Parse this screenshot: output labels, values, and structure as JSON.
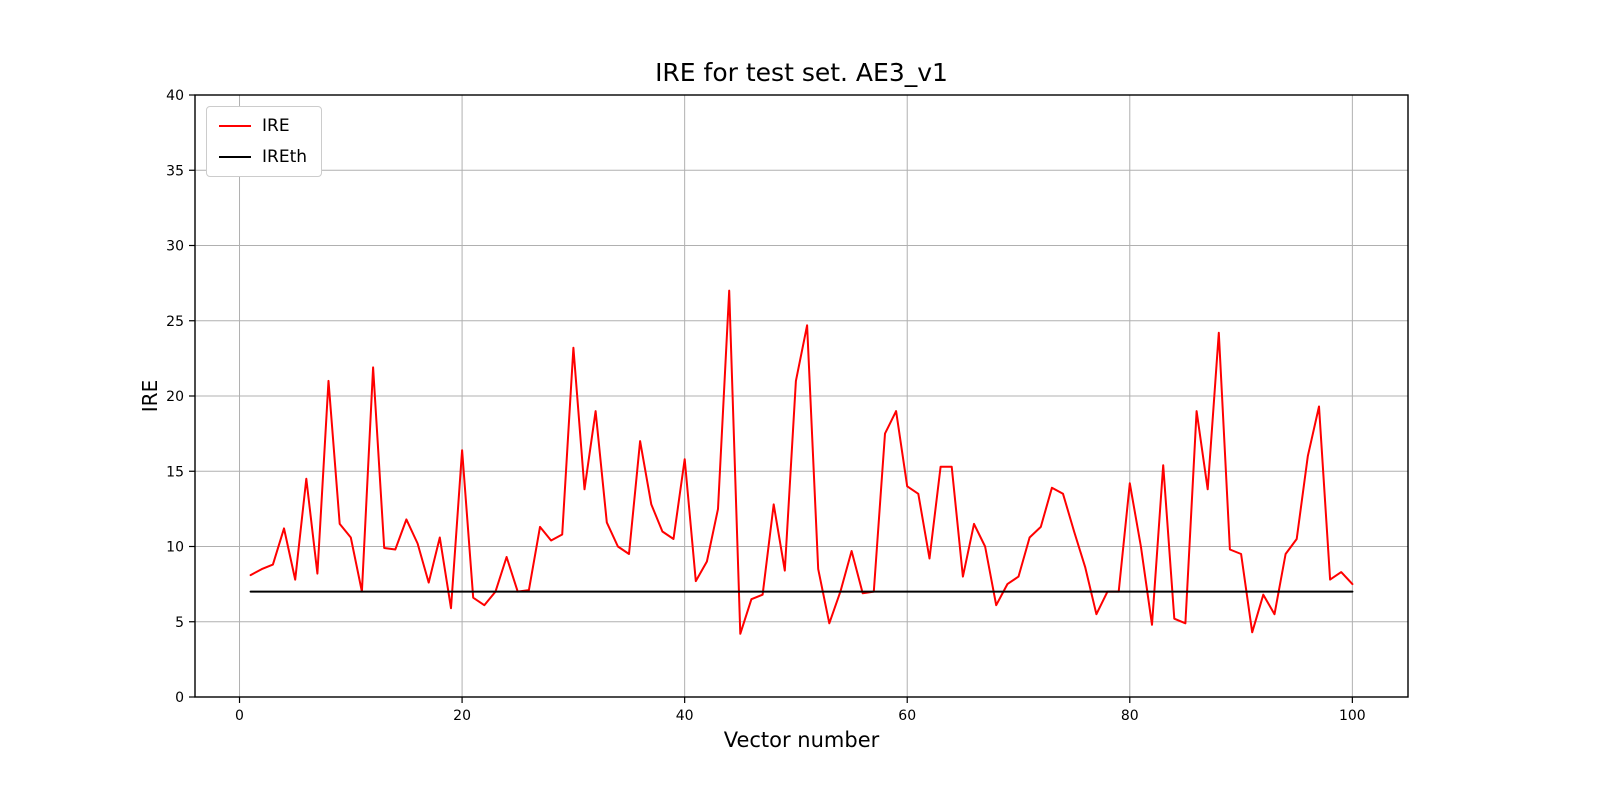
{
  "chart_data": {
    "type": "line",
    "title": "IRE for test set. AE3_v1",
    "xlabel": "Vector number",
    "ylabel": "IRE",
    "xlim": [
      -4,
      105
    ],
    "ylim": [
      0,
      40
    ],
    "xticks": [
      0,
      20,
      40,
      60,
      80,
      100
    ],
    "yticks": [
      0,
      5,
      10,
      15,
      20,
      25,
      30,
      35,
      40
    ],
    "grid": true,
    "legend_position": "upper left",
    "x_start": 1,
    "series": [
      {
        "name": "IRE",
        "color": "#ff0000",
        "values": [
          8.1,
          8.5,
          8.8,
          11.2,
          7.8,
          14.5,
          8.2,
          21.0,
          11.5,
          10.6,
          7.0,
          21.9,
          9.9,
          9.8,
          11.8,
          10.2,
          7.6,
          10.6,
          5.9,
          16.4,
          6.6,
          6.1,
          7.0,
          9.3,
          7.0,
          7.1,
          11.3,
          10.4,
          10.8,
          23.2,
          13.8,
          19.0,
          11.6,
          10.0,
          9.5,
          17.0,
          12.8,
          11.0,
          10.5,
          15.8,
          7.7,
          9.0,
          12.5,
          27.0,
          4.2,
          6.5,
          6.8,
          12.8,
          8.4,
          21.0,
          24.7,
          8.5,
          4.9,
          7.0,
          9.7,
          6.9,
          7.0,
          17.5,
          19.0,
          14.0,
          13.5,
          9.2,
          15.3,
          15.3,
          8.0,
          11.5,
          10.0,
          6.1,
          7.5,
          8.0,
          10.6,
          11.3,
          13.9,
          13.5,
          11.0,
          8.6,
          5.5,
          7.0,
          7.0,
          14.2,
          10.0,
          4.8,
          15.4,
          5.2,
          4.9,
          19.0,
          13.8,
          24.2,
          9.8,
          9.5,
          4.3,
          6.8,
          5.5,
          9.5,
          10.5,
          16.0,
          19.3,
          7.8,
          8.3,
          7.5
        ]
      },
      {
        "name": "IREth",
        "color": "#000000",
        "constant": 7.0
      }
    ]
  }
}
